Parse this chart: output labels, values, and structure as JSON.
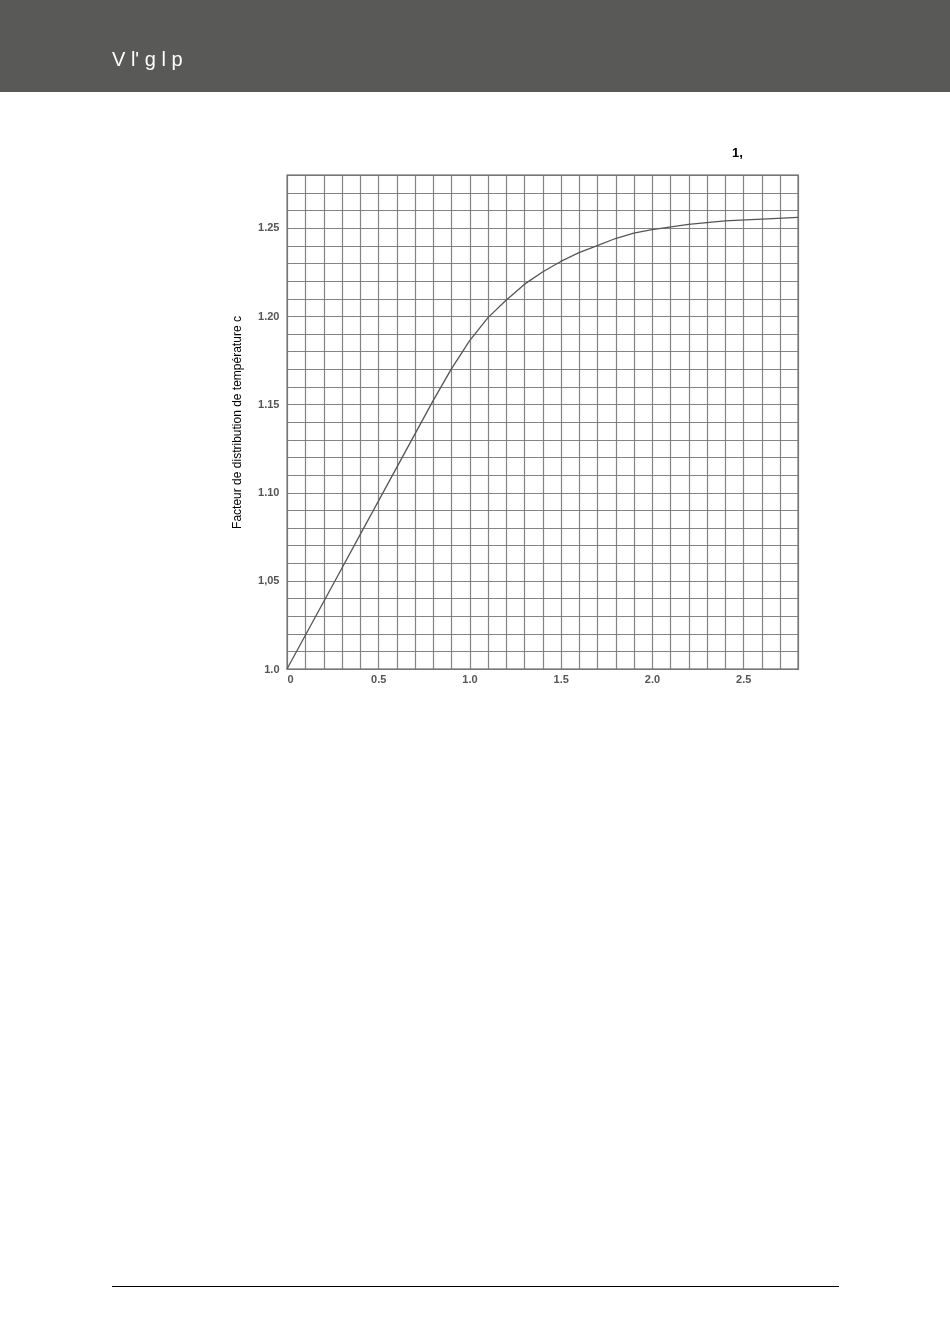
{
  "chart_data": {
    "type": "line",
    "title": "V l' g l p",
    "ylabel": "Facteur de distribution de température c",
    "annotations": [
      "1,"
    ],
    "x": [
      0,
      0.1,
      0.2,
      0.3,
      0.4,
      0.5,
      0.6,
      0.7,
      0.8,
      0.9,
      1.0,
      1.1,
      1.2,
      1.3,
      1.4,
      1.5,
      1.6,
      1.7,
      1.8,
      1.9,
      2.0,
      2.2,
      2.4,
      2.6,
      2.8
    ],
    "series": [
      {
        "color": "#555555",
        "values": [
          1.0,
          1.019,
          1.038,
          1.057,
          1.076,
          1.095,
          1.114,
          1.133,
          1.152,
          1.17,
          1.186,
          1.199,
          1.209,
          1.218,
          1.225,
          1.231,
          1.236,
          1.24,
          1.244,
          1.247,
          1.249,
          1.252,
          1.254,
          1.255,
          1.256
        ]
      }
    ],
    "xlim": [
      0,
      2.8
    ],
    "ylim": [
      1.0,
      1.28
    ],
    "xticks": [
      0,
      {
        "value": 0.1,
        "label": null
      },
      {
        "value": 0.2,
        "label": null
      },
      {
        "value": 0.3,
        "label": null
      },
      {
        "value": 0.4,
        "label": null
      },
      0.5,
      {
        "value": 0.6,
        "label": null
      },
      {
        "value": 0.7,
        "label": null
      },
      {
        "value": 0.8,
        "label": null
      },
      {
        "value": 0.9,
        "label": null
      },
      {
        "value": 1.0,
        "label": "1.0"
      },
      {
        "value": 1.1,
        "label": null
      },
      {
        "value": 1.2,
        "label": null
      },
      {
        "value": 1.3,
        "label": null
      },
      {
        "value": 1.4,
        "label": null
      },
      1.5,
      {
        "value": 1.6,
        "label": null
      },
      {
        "value": 1.7,
        "label": null
      },
      {
        "value": 1.8,
        "label": null
      },
      {
        "value": 1.9,
        "label": null
      },
      {
        "value": 2.0,
        "label": "2.0"
      },
      {
        "value": 2.1,
        "label": null
      },
      {
        "value": 2.2,
        "label": null
      },
      {
        "value": 2.3,
        "label": null
      },
      {
        "value": 2.4,
        "label": null
      },
      2.5,
      {
        "value": 2.6,
        "label": null
      },
      {
        "value": 2.7,
        "label": null
      },
      {
        "value": 2.8,
        "label": null
      }
    ],
    "yticks": [
      {
        "value": 1.0,
        "label": "1.0"
      },
      {
        "value": 1.01,
        "label": null
      },
      {
        "value": 1.02,
        "label": null
      },
      {
        "value": 1.03,
        "label": null
      },
      {
        "value": 1.04,
        "label": null
      },
      {
        "value": 1.05,
        "label": "1,05"
      },
      {
        "value": 1.06,
        "label": null
      },
      {
        "value": 1.07,
        "label": null
      },
      {
        "value": 1.08,
        "label": null
      },
      {
        "value": 1.09,
        "label": null
      },
      {
        "value": 1.1,
        "label": "1.10"
      },
      {
        "value": 1.11,
        "label": null
      },
      {
        "value": 1.12,
        "label": null
      },
      {
        "value": 1.13,
        "label": null
      },
      {
        "value": 1.14,
        "label": null
      },
      1.15,
      {
        "value": 1.16,
        "label": null
      },
      {
        "value": 1.17,
        "label": null
      },
      {
        "value": 1.18,
        "label": null
      },
      {
        "value": 1.19,
        "label": null
      },
      {
        "value": 1.2,
        "label": "1.20"
      },
      {
        "value": 1.21,
        "label": null
      },
      {
        "value": 1.22,
        "label": null
      },
      {
        "value": 1.23,
        "label": null
      },
      {
        "value": 1.24,
        "label": null
      },
      1.25,
      {
        "value": 1.26,
        "label": null
      },
      {
        "value": 1.27,
        "label": null
      },
      {
        "value": 1.28,
        "label": null
      }
    ],
    "grid": true,
    "legend": false,
    "marker": "none",
    "line_style": "solid"
  }
}
